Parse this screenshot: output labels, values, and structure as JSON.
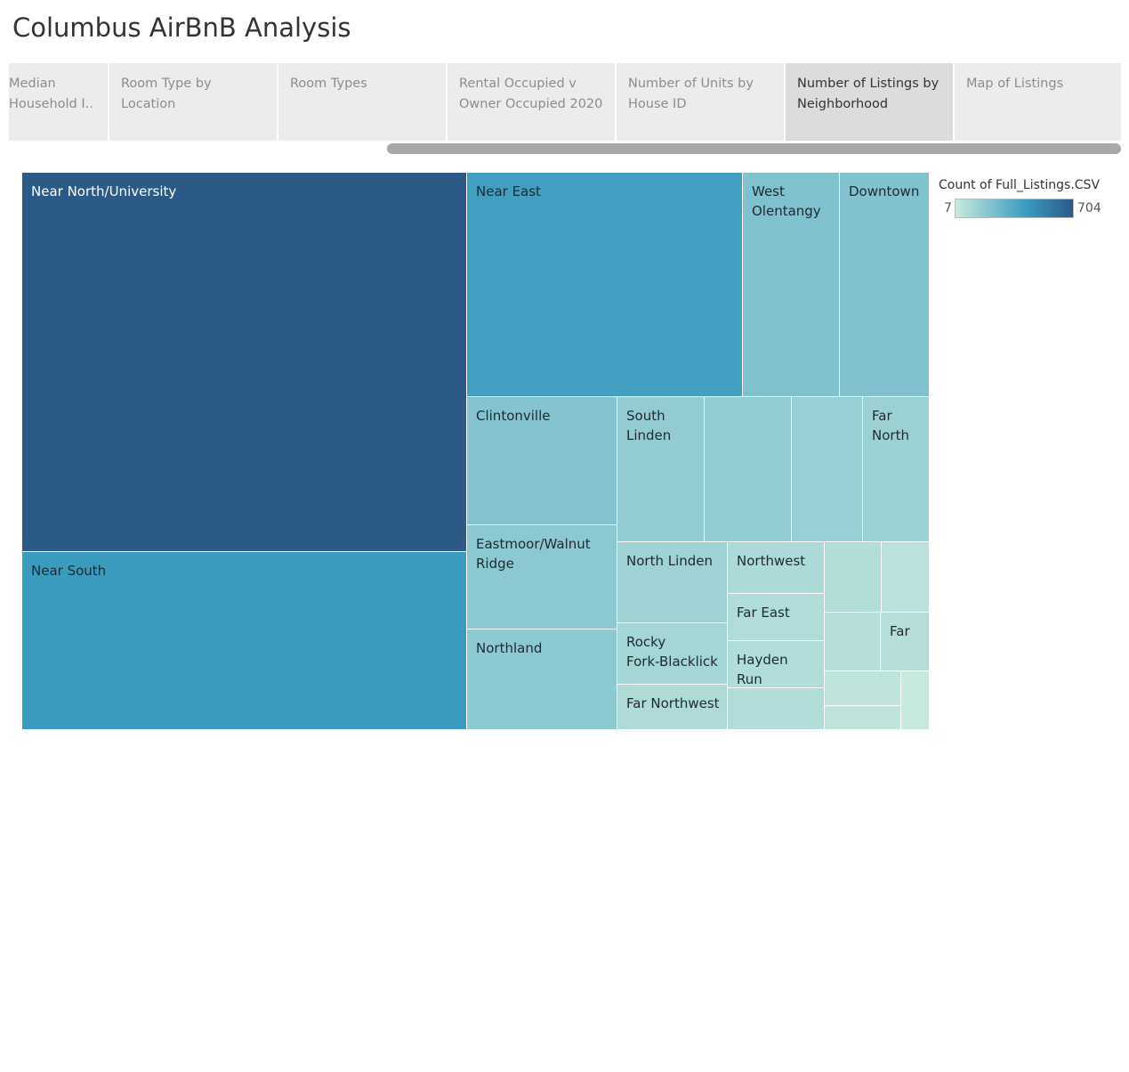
{
  "title": "Columbus AirBnB Analysis",
  "tabs": [
    {
      "label": "Median\nHousehold I..",
      "active": false
    },
    {
      "label": "Room Type by Location",
      "active": false
    },
    {
      "label": "Room Types",
      "active": false
    },
    {
      "label": "Rental Occupied v\nOwner Occupied 2020",
      "active": false
    },
    {
      "label": "Number of Units by\nHouse ID",
      "active": false
    },
    {
      "label": "Number of Listings by\nNeighborhood",
      "active": true
    },
    {
      "label": "Map of Listings",
      "active": false
    }
  ],
  "legend": {
    "title": "Count of Full_Listings.CSV",
    "min": "7",
    "max": "704",
    "color_low": "#c8e9de",
    "color_mid": "#3a9bbf",
    "color_high": "#2c5a87"
  },
  "chart_data": {
    "type": "treemap",
    "measure": "Count of Full_Listings.CSV",
    "color_range": [
      7,
      704
    ],
    "cells": [
      {
        "label": "Near North/University",
        "value": 704
      },
      {
        "label": "Near South",
        "value": 282
      },
      {
        "label": "Near East",
        "value": 256
      },
      {
        "label": "West\nOlentangy",
        "value": 90
      },
      {
        "label": "Downtown",
        "value": 84
      },
      {
        "label": "Clintonville",
        "value": 80
      },
      {
        "label": "South\nLinden",
        "value": 55
      },
      {
        "label": "",
        "value": 55
      },
      {
        "label": "",
        "value": 45
      },
      {
        "label": "Far\nNorth",
        "value": 40
      },
      {
        "label": "Eastmoor/Walnut\nRidge",
        "value": 65
      },
      {
        "label": "Northland",
        "value": 63
      },
      {
        "label": "North Linden",
        "value": 37
      },
      {
        "label": "Rocky\nFork-Blacklick",
        "value": 29
      },
      {
        "label": "Far Northwest",
        "value": 20
      },
      {
        "label": "Northwest",
        "value": 21
      },
      {
        "label": "Far East",
        "value": 18
      },
      {
        "label": "Hayden Run",
        "value": 18
      },
      {
        "label": "",
        "value": 17
      },
      {
        "label": "",
        "value": 16
      },
      {
        "label": "",
        "value": 11
      },
      {
        "label": "",
        "value": 13
      },
      {
        "label": "Far",
        "value": 13
      },
      {
        "label": "",
        "value": 9
      },
      {
        "label": "",
        "value": 9
      },
      {
        "label": "",
        "value": 7
      }
    ]
  }
}
